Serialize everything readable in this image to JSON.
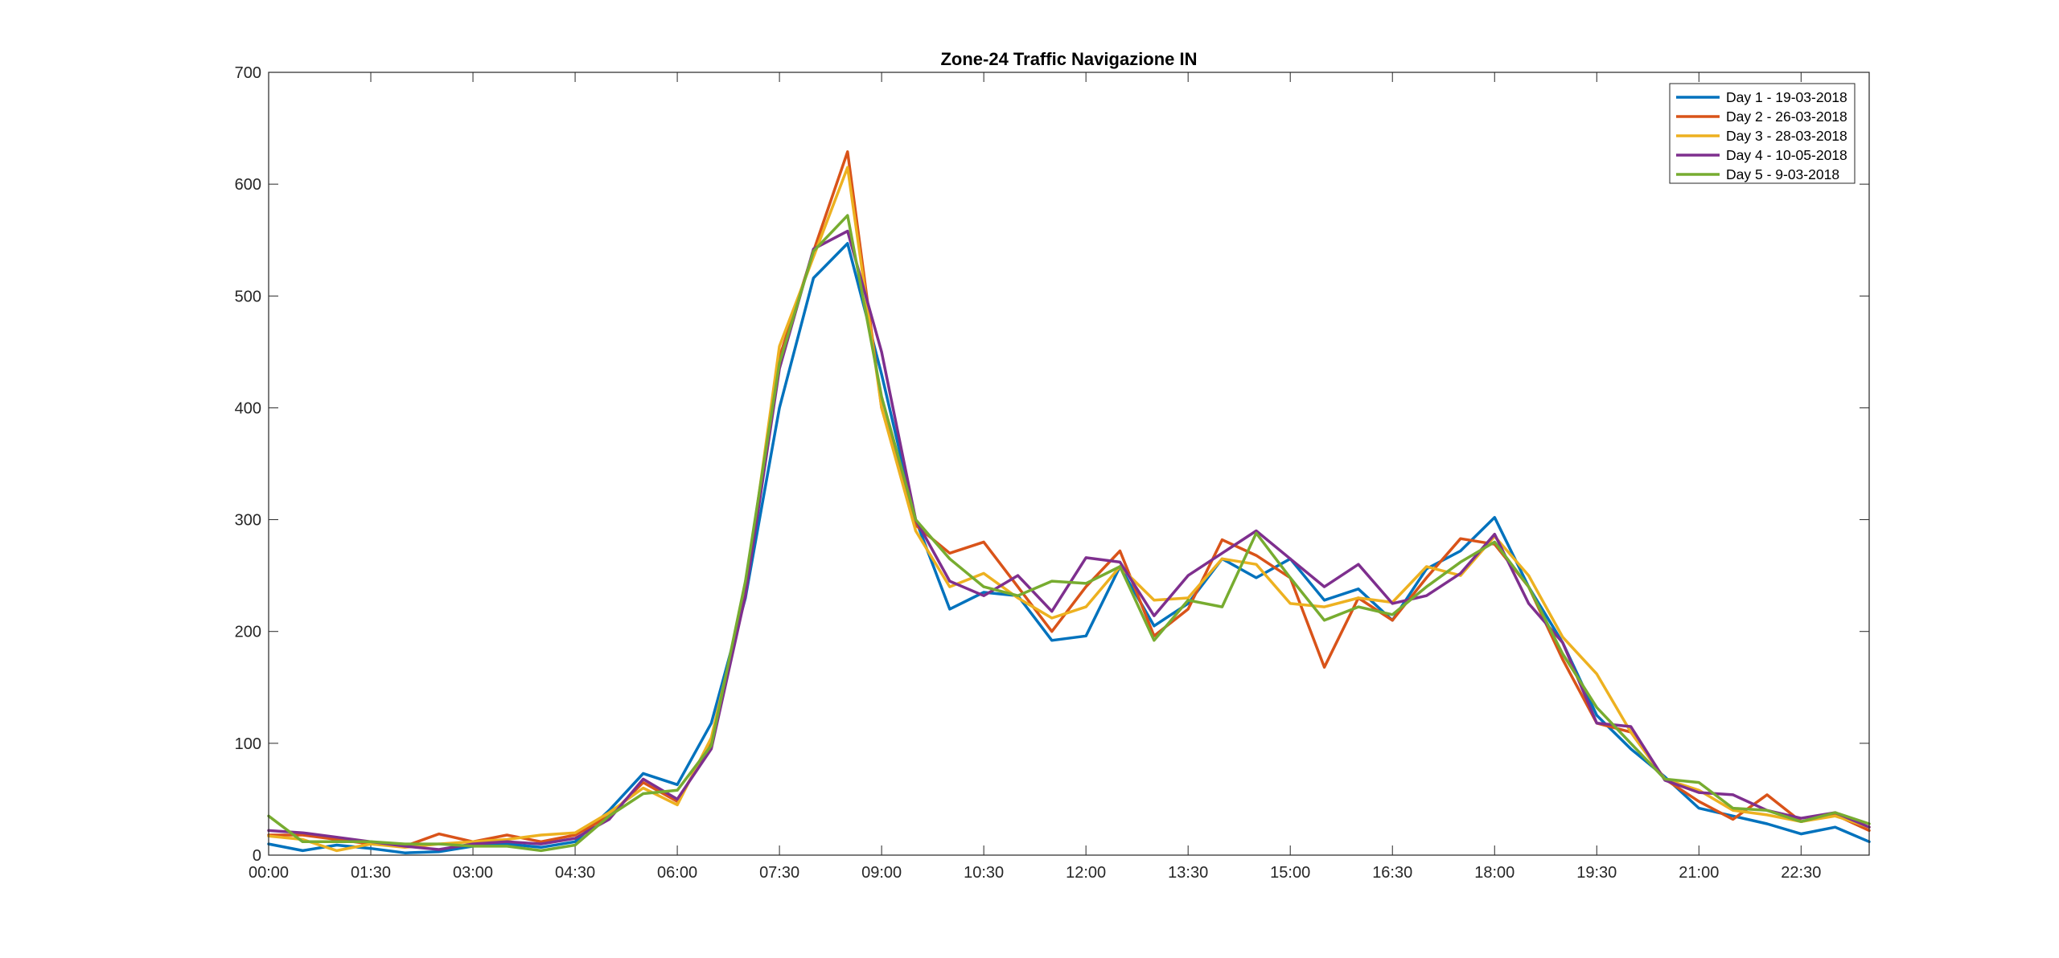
{
  "chart_data": {
    "type": "line",
    "title": "Zone-24 Traffic Navigazione IN",
    "xlabel": "",
    "ylabel": "",
    "xlim": [
      0,
      47
    ],
    "ylim": [
      0,
      700
    ],
    "x_ticks": [
      {
        "pos": 0,
        "label": "00:00"
      },
      {
        "pos": 3,
        "label": "01:30"
      },
      {
        "pos": 6,
        "label": "03:00"
      },
      {
        "pos": 9,
        "label": "04:30"
      },
      {
        "pos": 12,
        "label": "06:00"
      },
      {
        "pos": 15,
        "label": "07:30"
      },
      {
        "pos": 18,
        "label": "09:00"
      },
      {
        "pos": 21,
        "label": "10:30"
      },
      {
        "pos": 24,
        "label": "12:00"
      },
      {
        "pos": 27,
        "label": "13:30"
      },
      {
        "pos": 30,
        "label": "15:00"
      },
      {
        "pos": 33,
        "label": "16:30"
      },
      {
        "pos": 36,
        "label": "18:00"
      },
      {
        "pos": 39,
        "label": "19:30"
      },
      {
        "pos": 42,
        "label": "21:00"
      },
      {
        "pos": 45,
        "label": "22:30"
      }
    ],
    "y_ticks": [
      0,
      100,
      200,
      300,
      400,
      500,
      600,
      700
    ],
    "grid": false,
    "legend_position": "top-right",
    "series": [
      {
        "name": "Day 1 - 19-03-2018",
        "color": "#0072BD",
        "values": [
          10,
          4,
          9,
          6,
          2,
          3,
          8,
          10,
          7,
          12,
          40,
          73,
          63,
          118,
          230,
          400,
          516,
          547,
          430,
          300,
          220,
          235,
          232,
          192,
          196,
          258,
          205,
          225,
          265,
          248,
          265,
          228,
          238,
          210,
          256,
          272,
          302,
          240,
          190,
          125,
          95,
          70,
          42,
          35,
          28,
          19,
          25,
          12
        ]
      },
      {
        "name": "Day 2 - 26-03-2018",
        "color": "#D95319",
        "values": [
          18,
          18,
          14,
          10,
          8,
          19,
          12,
          18,
          12,
          18,
          35,
          65,
          48,
          100,
          240,
          445,
          540,
          629,
          400,
          295,
          270,
          280,
          240,
          200,
          240,
          272,
          196,
          220,
          282,
          268,
          248,
          168,
          230,
          210,
          248,
          283,
          278,
          240,
          175,
          118,
          110,
          68,
          48,
          32,
          54,
          30,
          36,
          22
        ]
      },
      {
        "name": "Day 3 - 28-03-2018",
        "color": "#EDB120",
        "values": [
          17,
          14,
          4,
          10,
          7,
          10,
          12,
          14,
          18,
          20,
          38,
          60,
          45,
          105,
          235,
          455,
          535,
          615,
          400,
          290,
          240,
          252,
          230,
          212,
          222,
          258,
          228,
          230,
          265,
          260,
          225,
          222,
          230,
          226,
          258,
          250,
          285,
          250,
          195,
          162,
          110,
          68,
          58,
          40,
          36,
          30,
          35,
          25
        ]
      },
      {
        "name": "Day 4 - 10-05-2018",
        "color": "#7E2F8E",
        "values": [
          22,
          20,
          16,
          12,
          8,
          5,
          10,
          12,
          10,
          15,
          32,
          68,
          50,
          95,
          232,
          435,
          542,
          558,
          450,
          300,
          245,
          232,
          250,
          218,
          266,
          262,
          214,
          250,
          270,
          290,
          265,
          240,
          260,
          225,
          232,
          252,
          287,
          225,
          190,
          118,
          115,
          67,
          56,
          54,
          40,
          33,
          38,
          25
        ]
      },
      {
        "name": "Day 5 - 9-03-2018",
        "color": "#77AC30",
        "values": [
          35,
          12,
          12,
          12,
          10,
          10,
          8,
          8,
          4,
          9,
          35,
          55,
          58,
          98,
          245,
          440,
          540,
          572,
          410,
          300,
          265,
          240,
          232,
          245,
          243,
          258,
          192,
          228,
          222,
          288,
          248,
          210,
          222,
          215,
          240,
          262,
          280,
          240,
          180,
          132,
          100,
          68,
          65,
          42,
          40,
          30,
          38,
          28
        ]
      }
    ]
  }
}
